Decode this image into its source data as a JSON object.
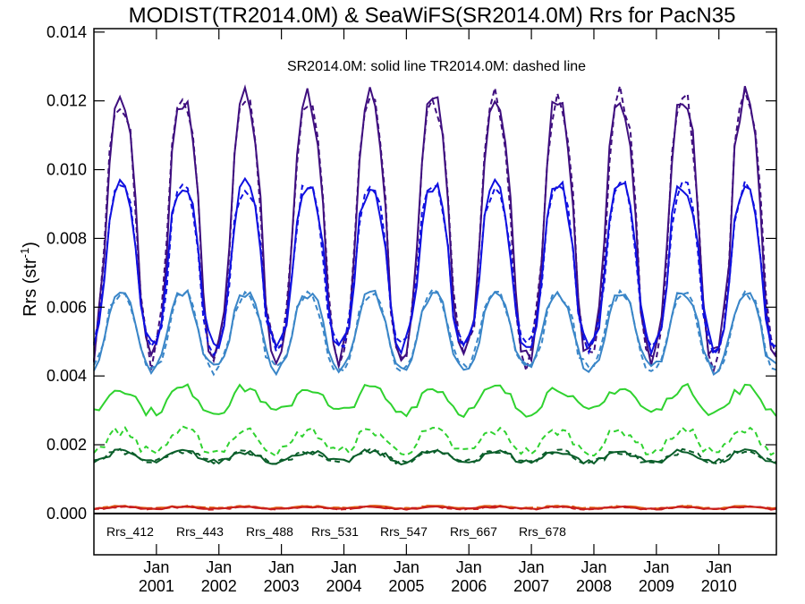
{
  "chart_data": {
    "type": "line",
    "title": "MODIST(TR2014.0M) & SeaWiFS(SR2014.0M)  Rrs for PacN35",
    "annotation": "SR2014.0M: solid line   TR2014.0M: dashed line",
    "ylabel_main": "Rrs (str",
    "ylabel_sup": "-1",
    "ylabel_close": ")",
    "xlabel": "",
    "ylim": [
      -0.0012,
      0.0141
    ],
    "xlim": [
      2000.0,
      2010.92
    ],
    "yticks": [
      "0.000",
      "0.002",
      "0.004",
      "0.006",
      "0.008",
      "0.010",
      "0.012",
      "0.014"
    ],
    "xtick_month": "Jan",
    "xtick_years": [
      "2001",
      "2002",
      "2003",
      "2004",
      "2005",
      "2006",
      "2007",
      "2008",
      "2009",
      "2010"
    ],
    "grid": false,
    "legend_position": "bottom-left inside",
    "series": [
      {
        "name": "Rrs_412",
        "color": "#3f0f7f",
        "base": 0.0083,
        "amp": 0.0038,
        "noise": 0.00045
      },
      {
        "name": "Rrs_443",
        "color": "#1010e0",
        "base": 0.0072,
        "amp": 0.0024,
        "noise": 0.0003
      },
      {
        "name": "Rrs_488",
        "color": "#3a86c8",
        "base": 0.0053,
        "amp": 0.0011,
        "noise": 0.0002
      },
      {
        "name": "Rrs_531",
        "color": "#2fd22f",
        "base": 0.0033,
        "amp": 0.00035,
        "noise": 0.00018,
        "dashed_base": 0.0021,
        "dashed_amp": 0.0003
      },
      {
        "name": "Rrs_547",
        "color": "#0a5e2a",
        "base": 0.00165,
        "amp": 0.00015,
        "noise": 0.0001
      },
      {
        "name": "Rrs_667",
        "color": "#e06010",
        "base": 0.00018,
        "amp": 3e-05,
        "noise": 3e-05
      },
      {
        "name": "Rrs_678",
        "color": "#c81e1e",
        "base": 0.00016,
        "amp": 3e-05,
        "noise": 3e-05
      }
    ],
    "zero_line": 0.0
  }
}
